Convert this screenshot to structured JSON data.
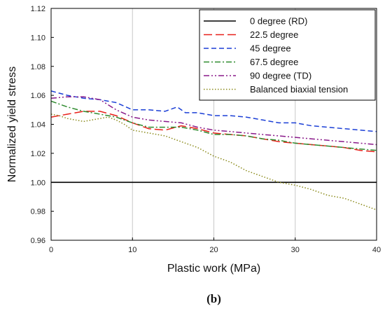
{
  "chart_data": {
    "type": "line",
    "title": "",
    "xlabel": "Plastic work (MPa)",
    "ylabel": "Normalized yield stress",
    "xlim": [
      0,
      40
    ],
    "ylim": [
      0.96,
      1.12
    ],
    "xticks": [
      0,
      10,
      20,
      30,
      40
    ],
    "yticks": [
      0.96,
      0.98,
      1.0,
      1.02,
      1.04,
      1.06,
      1.08,
      1.1,
      1.12
    ],
    "ytick_labels": [
      "0.96",
      "0.98",
      "1.00",
      "1.02",
      "1.04",
      "1.06",
      "1.08",
      "1.10",
      "1.12"
    ],
    "grid": "vertical",
    "legend": "top-right",
    "panel_label": "(b)",
    "series": [
      {
        "name": "0 degree (RD)",
        "color": "#000000",
        "dash": "solid",
        "x": [
          0,
          40
        ],
        "y": [
          1.0,
          1.0
        ]
      },
      {
        "name": "22.5 degree",
        "color": "#e8201a",
        "dash": "longdash",
        "x": [
          0,
          2,
          4,
          6,
          8,
          10,
          12,
          14,
          16,
          18,
          20,
          22,
          24,
          26,
          28,
          30,
          32,
          34,
          36,
          38,
          40
        ],
        "y": [
          1.045,
          1.047,
          1.049,
          1.049,
          1.046,
          1.041,
          1.037,
          1.036,
          1.039,
          1.037,
          1.034,
          1.033,
          1.032,
          1.03,
          1.028,
          1.027,
          1.026,
          1.025,
          1.024,
          1.022,
          1.021
        ]
      },
      {
        "name": "45 degree",
        "color": "#1b3fd6",
        "dash": "dash",
        "x": [
          0,
          2,
          4,
          6,
          8,
          10,
          12,
          14,
          15.5,
          16.5,
          18,
          20,
          22,
          24,
          26,
          28,
          30,
          32,
          34,
          36,
          38,
          40
        ],
        "y": [
          1.063,
          1.06,
          1.058,
          1.057,
          1.055,
          1.05,
          1.05,
          1.049,
          1.052,
          1.048,
          1.048,
          1.046,
          1.046,
          1.045,
          1.043,
          1.041,
          1.041,
          1.039,
          1.038,
          1.037,
          1.036,
          1.035
        ]
      },
      {
        "name": "67.5 degree",
        "color": "#2e8b2e",
        "dash": "dashdot",
        "x": [
          0,
          2,
          4,
          6,
          8,
          10,
          12,
          14,
          16,
          18,
          20,
          22,
          24,
          26,
          28,
          30,
          32,
          34,
          36,
          38,
          40
        ],
        "y": [
          1.056,
          1.052,
          1.049,
          1.047,
          1.045,
          1.041,
          1.038,
          1.038,
          1.038,
          1.036,
          1.033,
          1.033,
          1.032,
          1.03,
          1.029,
          1.027,
          1.026,
          1.025,
          1.024,
          1.023,
          1.022
        ]
      },
      {
        "name": "90 degree (TD)",
        "color": "#8a1a8a",
        "dash": "dashdotdot",
        "x": [
          0,
          2,
          4,
          6,
          8,
          10,
          12,
          14,
          16,
          18,
          20,
          22,
          24,
          26,
          28,
          30,
          32,
          34,
          36,
          38,
          40
        ],
        "y": [
          1.058,
          1.059,
          1.059,
          1.057,
          1.05,
          1.045,
          1.043,
          1.042,
          1.041,
          1.038,
          1.036,
          1.035,
          1.034,
          1.033,
          1.032,
          1.031,
          1.03,
          1.029,
          1.028,
          1.027,
          1.026
        ]
      },
      {
        "name": "Balanced biaxial tension",
        "color": "#8a8a1a",
        "dash": "dotted",
        "x": [
          0,
          1,
          2,
          3,
          4,
          5,
          6,
          7,
          8,
          9,
          10,
          12,
          14,
          16,
          18,
          20,
          22,
          24,
          26,
          28,
          30,
          32,
          34,
          36,
          38,
          40
        ],
        "y": [
          1.047,
          1.046,
          1.044,
          1.043,
          1.042,
          1.043,
          1.044,
          1.045,
          1.043,
          1.04,
          1.036,
          1.034,
          1.032,
          1.028,
          1.024,
          1.018,
          1.014,
          1.008,
          1.004,
          1.0,
          0.998,
          0.995,
          0.991,
          0.989,
          0.985,
          0.981
        ]
      }
    ]
  }
}
